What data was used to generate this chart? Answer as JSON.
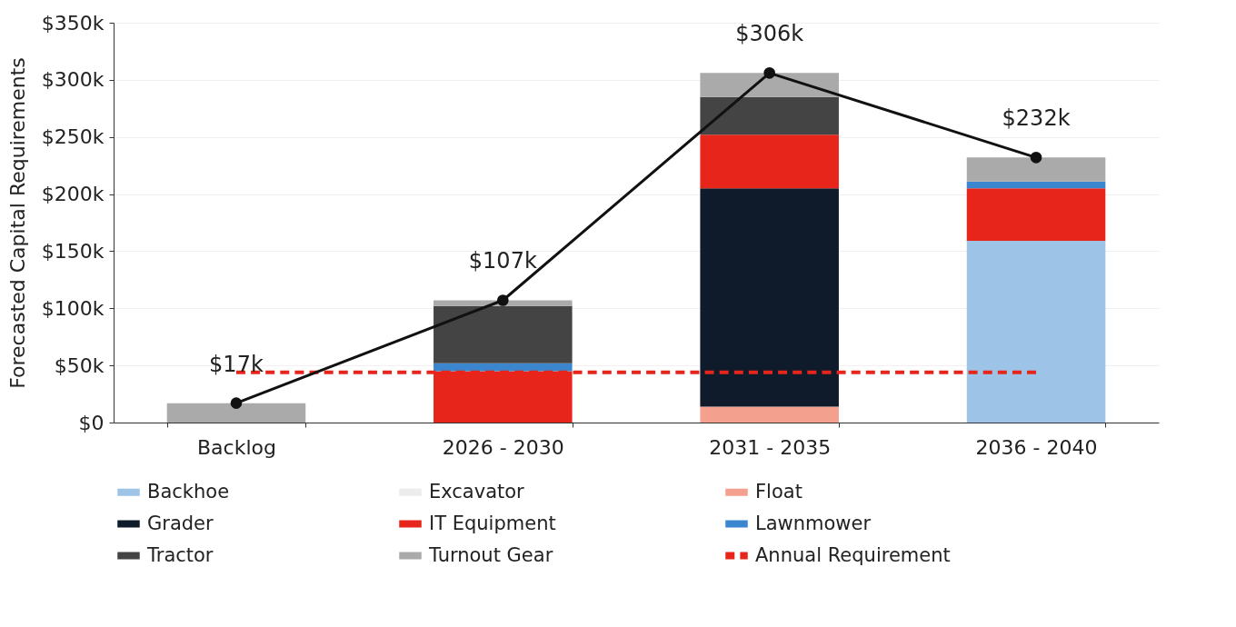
{
  "chart_data": {
    "type": "bar",
    "stacked": true,
    "ylabel": "Forecasted Capital Requirements",
    "categories": [
      "Backlog",
      "2026 - 2030",
      "2031 - 2035",
      "2036 - 2040"
    ],
    "series": [
      {
        "name": "Backhoe",
        "color": "#9dc3e6",
        "values": [
          0,
          0,
          0,
          159
        ]
      },
      {
        "name": "Excavator",
        "color": "#ececec",
        "values": [
          0,
          0,
          0,
          0
        ]
      },
      {
        "name": "Float",
        "color": "#f4a08e",
        "values": [
          0,
          0,
          14,
          0
        ]
      },
      {
        "name": "Grader",
        "color": "#0f1a2b",
        "values": [
          0,
          0,
          191,
          0
        ]
      },
      {
        "name": "IT Equipment",
        "color": "#e8251a",
        "values": [
          0,
          45,
          47,
          46
        ]
      },
      {
        "name": "Lawnmower",
        "color": "#3a86cf",
        "values": [
          0,
          7,
          0,
          6
        ]
      },
      {
        "name": "Tractor",
        "color": "#444444",
        "values": [
          0,
          50,
          33,
          0
        ]
      },
      {
        "name": "Turnout Gear",
        "color": "#aaaaaa",
        "values": [
          17,
          5,
          21,
          21
        ]
      },
      {
        "name": "Annual Requirement",
        "type": "line",
        "color": "#e8251a",
        "line_style": "dashed",
        "marker": "none",
        "values": [
          44,
          44,
          44,
          44
        ]
      },
      {
        "type": "line",
        "color": "#111111",
        "line_style": "solid",
        "marker": "circle",
        "values": [
          17,
          107,
          306,
          232
        ],
        "value_labels": [
          "$17k",
          "$107k",
          "$306k",
          "$232k"
        ]
      }
    ],
    "ylim": [
      0,
      350
    ],
    "yticks": [
      {
        "value": 0,
        "label": "$0"
      },
      {
        "value": 50,
        "label": "$50k"
      },
      {
        "value": 100,
        "label": "$100k"
      },
      {
        "value": 150,
        "label": "$150k"
      },
      {
        "value": 200,
        "label": "$200k"
      },
      {
        "value": 250,
        "label": "$250k"
      },
      {
        "value": 300,
        "label": "$300k"
      },
      {
        "value": 350,
        "label": "$350k"
      }
    ],
    "grid": "y",
    "legend": "bottom"
  }
}
